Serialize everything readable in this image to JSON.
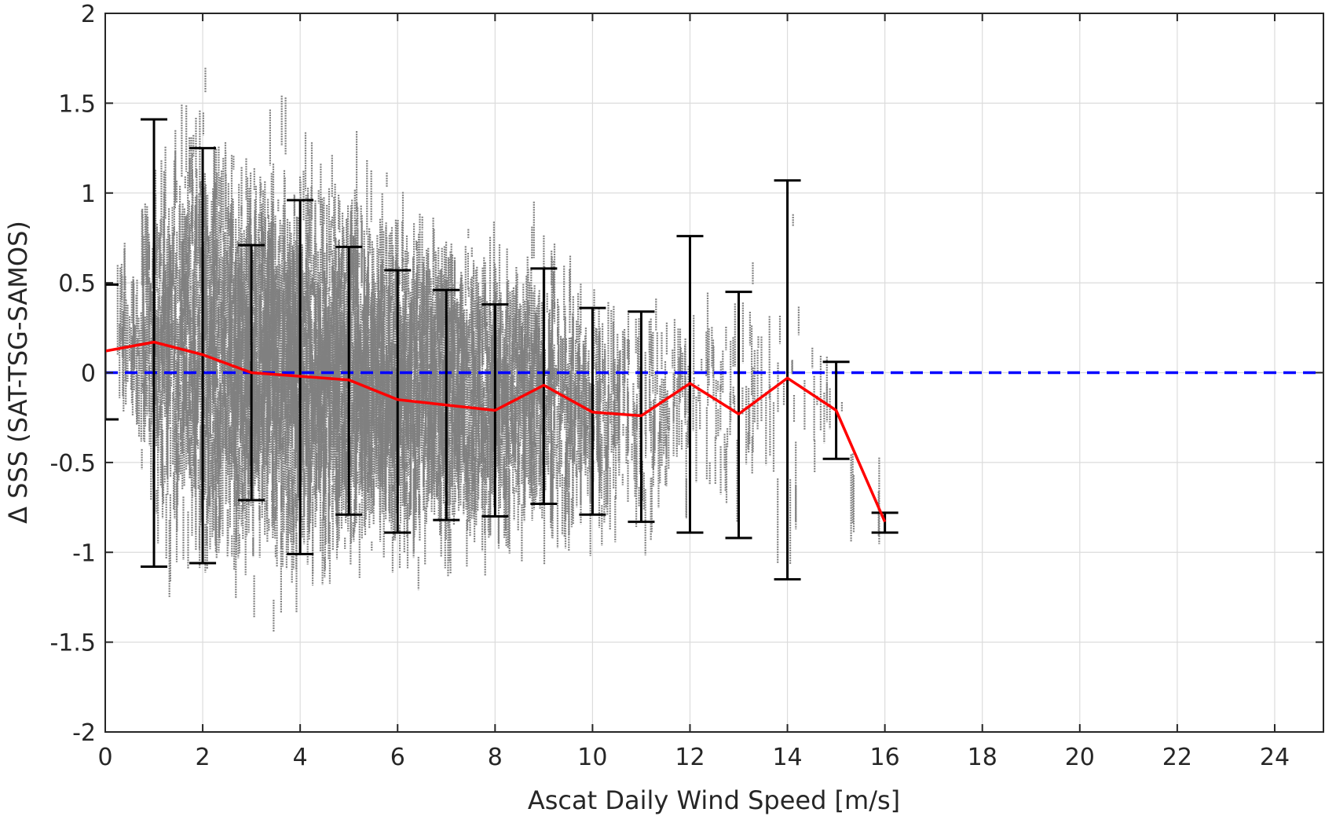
{
  "chart_data": {
    "type": "scatter",
    "xlabel": "Ascat Daily Wind Speed [m/s]",
    "ylabel": "Δ SSS (SAT-TSG-SAMOS)",
    "xlim": [
      0,
      25
    ],
    "ylim": [
      -2,
      2
    ],
    "xticks": [
      0,
      2,
      4,
      6,
      8,
      10,
      12,
      14,
      16,
      18,
      20,
      22,
      24
    ],
    "xtick_labels": [
      "0",
      "2",
      "4",
      "6",
      "8",
      "10",
      "12",
      "14",
      "16",
      "18",
      "20",
      "22",
      "24"
    ],
    "yticks": [
      -2,
      -1.5,
      -1,
      -0.5,
      0,
      0.5,
      1,
      1.5,
      2
    ],
    "ytick_labels": [
      "-2",
      "-1.5",
      "-1",
      "-0.5",
      "0",
      "0.5",
      "1",
      "1.5",
      "2"
    ],
    "grid": true,
    "reference_line": {
      "y": 0,
      "style": "dashed",
      "color": "#0000ff"
    },
    "scatter_color": "#808080",
    "mean_line_color": "#ff0000",
    "errorbar_color": "#000000",
    "mean_by_wind_speed": {
      "x": [
        0,
        1,
        2,
        3,
        4,
        5,
        6,
        7,
        8,
        9,
        10,
        11,
        12,
        13,
        14,
        15,
        16
      ],
      "mean": [
        0.12,
        0.17,
        0.1,
        0.0,
        -0.02,
        -0.04,
        -0.15,
        -0.18,
        -0.21,
        -0.07,
        -0.22,
        -0.24,
        -0.06,
        -0.23,
        -0.03,
        -0.21,
        -0.83
      ],
      "upper": [
        0.49,
        1.41,
        1.25,
        0.71,
        0.96,
        0.7,
        0.57,
        0.46,
        0.38,
        0.58,
        0.36,
        0.34,
        0.76,
        0.45,
        1.07,
        0.06,
        -0.78
      ],
      "lower": [
        -0.26,
        -1.08,
        -1.06,
        -0.71,
        -1.01,
        -0.79,
        -0.89,
        -0.82,
        -0.8,
        -0.73,
        -0.79,
        -0.83,
        -0.89,
        -0.92,
        -1.15,
        -0.48,
        -0.89
      ]
    },
    "scatter_clusters": [
      {
        "x": 0.5,
        "mean": 0.15,
        "spread": 0.3,
        "n": 50
      },
      {
        "x": 1.0,
        "mean": 0.2,
        "spread": 0.7,
        "n": 160
      },
      {
        "x": 1.5,
        "mean": 0.15,
        "spread": 0.8,
        "n": 200
      },
      {
        "x": 2.0,
        "mean": 0.15,
        "spread": 0.85,
        "n": 240
      },
      {
        "x": 2.5,
        "mean": 0.1,
        "spread": 0.8,
        "n": 260
      },
      {
        "x": 3.0,
        "mean": 0.1,
        "spread": 0.75,
        "n": 280
      },
      {
        "x": 3.5,
        "mean": 0.05,
        "spread": 0.75,
        "n": 300
      },
      {
        "x": 4.0,
        "mean": 0.05,
        "spread": 0.75,
        "n": 310
      },
      {
        "x": 4.5,
        "mean": 0.0,
        "spread": 0.7,
        "n": 300
      },
      {
        "x": 5.0,
        "mean": 0.0,
        "spread": 0.7,
        "n": 290
      },
      {
        "x": 5.5,
        "mean": -0.05,
        "spread": 0.65,
        "n": 280
      },
      {
        "x": 6.0,
        "mean": -0.05,
        "spread": 0.65,
        "n": 270
      },
      {
        "x": 6.5,
        "mean": -0.1,
        "spread": 0.6,
        "n": 250
      },
      {
        "x": 7.0,
        "mean": -0.1,
        "spread": 0.6,
        "n": 230
      },
      {
        "x": 7.5,
        "mean": -0.15,
        "spread": 0.55,
        "n": 210
      },
      {
        "x": 8.0,
        "mean": -0.15,
        "spread": 0.55,
        "n": 190
      },
      {
        "x": 8.5,
        "mean": -0.15,
        "spread": 0.5,
        "n": 160
      },
      {
        "x": 9.0,
        "mean": -0.1,
        "spread": 0.55,
        "n": 130
      },
      {
        "x": 9.5,
        "mean": -0.15,
        "spread": 0.5,
        "n": 100
      },
      {
        "x": 10.0,
        "mean": -0.2,
        "spread": 0.45,
        "n": 75
      },
      {
        "x": 10.5,
        "mean": -0.2,
        "spread": 0.45,
        "n": 55
      },
      {
        "x": 11.0,
        "mean": -0.25,
        "spread": 0.45,
        "n": 40
      },
      {
        "x": 11.5,
        "mean": -0.2,
        "spread": 0.45,
        "n": 30
      },
      {
        "x": 12.0,
        "mean": -0.1,
        "spread": 0.5,
        "n": 25
      },
      {
        "x": 12.5,
        "mean": -0.15,
        "spread": 0.5,
        "n": 20
      },
      {
        "x": 13.0,
        "mean": -0.2,
        "spread": 0.5,
        "n": 16
      },
      {
        "x": 13.5,
        "mean": -0.1,
        "spread": 0.5,
        "n": 12
      },
      {
        "x": 14.0,
        "mean": -0.05,
        "spread": 0.55,
        "n": 12
      },
      {
        "x": 14.5,
        "mean": -0.1,
        "spread": 0.4,
        "n": 6
      },
      {
        "x": 15.0,
        "mean": -0.2,
        "spread": 0.2,
        "n": 5
      },
      {
        "x": 15.5,
        "mean": -0.6,
        "spread": 0.2,
        "n": 3
      },
      {
        "x": 16.0,
        "mean": -0.85,
        "spread": 0.1,
        "n": 2
      }
    ]
  }
}
